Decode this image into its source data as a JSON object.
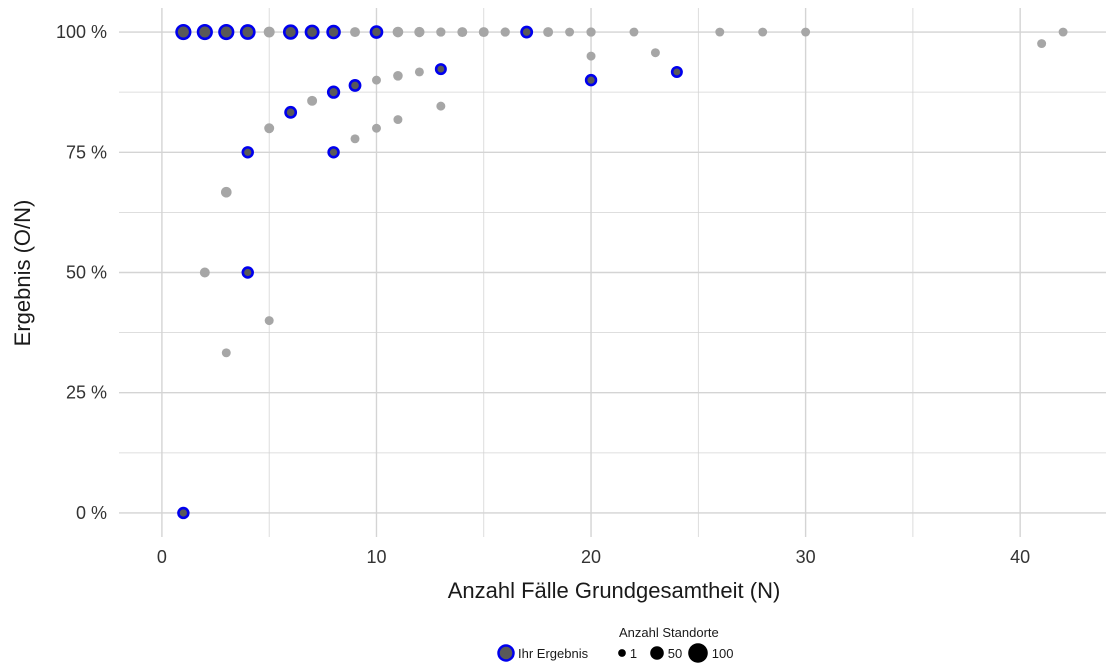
{
  "chart_data": {
    "type": "scatter",
    "title": "",
    "xlabel": "Anzahl Fälle Grundgesamtheit (N)",
    "ylabel": "Ergebnis (O/N)",
    "xlim": [
      -2,
      44
    ],
    "ylim": [
      -5,
      105
    ],
    "x_ticks": [
      0,
      10,
      20,
      30,
      40
    ],
    "x_minor": [
      5,
      15,
      25,
      35
    ],
    "y_ticks": [
      0,
      25,
      50,
      75,
      100
    ],
    "y_tick_labels": [
      "0 %",
      "25 %",
      "50 %",
      "75 %",
      "100 %"
    ],
    "y_minor": [
      12.5,
      37.5,
      62.5,
      87.5
    ],
    "grid": true,
    "legend_position": "bottom",
    "colors": {
      "background_points": "#a6a6a6",
      "highlight_fill": "#595959",
      "highlight_outline": "#0000ee",
      "grid": "#d4d4d4"
    },
    "series": [
      {
        "role": "background",
        "points": [
          {
            "x": 5,
            "y": 100,
            "size": 40
          },
          {
            "x": 9,
            "y": 100,
            "size": 28
          },
          {
            "x": 11,
            "y": 100,
            "size": 36
          },
          {
            "x": 12,
            "y": 100,
            "size": 32
          },
          {
            "x": 13,
            "y": 100,
            "size": 20
          },
          {
            "x": 14,
            "y": 100,
            "size": 28
          },
          {
            "x": 15,
            "y": 100,
            "size": 28
          },
          {
            "x": 16,
            "y": 100,
            "size": 20
          },
          {
            "x": 18,
            "y": 100,
            "size": 28
          },
          {
            "x": 19,
            "y": 100,
            "size": 16
          },
          {
            "x": 20,
            "y": 100,
            "size": 20
          },
          {
            "x": 22,
            "y": 100,
            "size": 16
          },
          {
            "x": 26,
            "y": 100,
            "size": 16
          },
          {
            "x": 28,
            "y": 100,
            "size": 16
          },
          {
            "x": 30,
            "y": 100,
            "size": 16
          },
          {
            "x": 42,
            "y": 100,
            "size": 16
          },
          {
            "x": 20,
            "y": 95,
            "size": 16
          },
          {
            "x": 23,
            "y": 95.7,
            "size": 16
          },
          {
            "x": 41,
            "y": 97.6,
            "size": 16
          },
          {
            "x": 12,
            "y": 91.7,
            "size": 16
          },
          {
            "x": 11,
            "y": 90.9,
            "size": 24
          },
          {
            "x": 10,
            "y": 90,
            "size": 16
          },
          {
            "x": 7,
            "y": 85.7,
            "size": 28
          },
          {
            "x": 13,
            "y": 84.6,
            "size": 16
          },
          {
            "x": 11,
            "y": 81.8,
            "size": 16
          },
          {
            "x": 5,
            "y": 80,
            "size": 28
          },
          {
            "x": 10,
            "y": 80,
            "size": 16
          },
          {
            "x": 9,
            "y": 77.8,
            "size": 16
          },
          {
            "x": 3,
            "y": 66.7,
            "size": 36
          },
          {
            "x": 2,
            "y": 50,
            "size": 28
          },
          {
            "x": 5,
            "y": 40,
            "size": 16
          },
          {
            "x": 3,
            "y": 33.3,
            "size": 16
          }
        ]
      },
      {
        "role": "highlight",
        "points": [
          {
            "x": 1,
            "y": 100,
            "size": 100
          },
          {
            "x": 2,
            "y": 100,
            "size": 100
          },
          {
            "x": 3,
            "y": 100,
            "size": 100
          },
          {
            "x": 4,
            "y": 100,
            "size": 95
          },
          {
            "x": 6,
            "y": 100,
            "size": 90
          },
          {
            "x": 7,
            "y": 100,
            "size": 85
          },
          {
            "x": 8,
            "y": 100,
            "size": 80
          },
          {
            "x": 10,
            "y": 100,
            "size": 70
          },
          {
            "x": 17,
            "y": 100,
            "size": 60
          },
          {
            "x": 13,
            "y": 92.3,
            "size": 50
          },
          {
            "x": 24,
            "y": 91.7,
            "size": 50
          },
          {
            "x": 20,
            "y": 90,
            "size": 55
          },
          {
            "x": 9,
            "y": 88.9,
            "size": 60
          },
          {
            "x": 8,
            "y": 87.5,
            "size": 65
          },
          {
            "x": 6,
            "y": 83.3,
            "size": 60
          },
          {
            "x": 4,
            "y": 75,
            "size": 55
          },
          {
            "x": 8,
            "y": 75,
            "size": 55
          },
          {
            "x": 4,
            "y": 50,
            "size": 55
          },
          {
            "x": 1,
            "y": 0,
            "size": 55
          }
        ]
      }
    ],
    "legend": {
      "highlight_label": "Ihr Ergebnis",
      "size_title": "Anzahl Standorte",
      "size_entries": [
        {
          "label": "1",
          "size": 1
        },
        {
          "label": "50",
          "size": 50
        },
        {
          "label": "100",
          "size": 100
        }
      ]
    }
  }
}
